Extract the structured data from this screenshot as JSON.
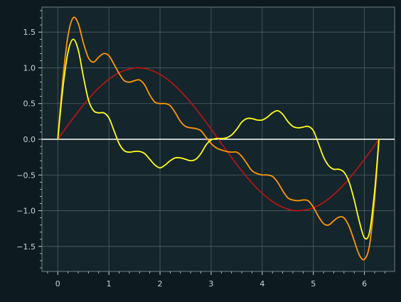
{
  "chart_data": {
    "type": "line",
    "title": "",
    "xlabel": "",
    "ylabel": "",
    "xlim": [
      -0.31,
      6.59
    ],
    "ylim": [
      -1.85,
      1.85
    ],
    "grid": true,
    "legend": "none",
    "x_ticks": [
      0,
      1,
      2,
      3,
      4,
      5,
      6
    ],
    "x_tick_labels": [
      "0",
      "1",
      "2",
      "3",
      "4",
      "5",
      "6"
    ],
    "y_ticks": [
      -1.5,
      -1.0,
      -0.5,
      0.0,
      0.5,
      1.0,
      1.5
    ],
    "y_tick_labels": [
      "−1.5",
      "−1.0",
      "−0.5",
      "0.0",
      "0.5",
      "1.0",
      "1.5"
    ],
    "series": [
      {
        "color": "#b01616",
        "x": [
          0,
          0.25,
          0.5,
          0.75,
          1.0,
          1.25,
          1.5,
          1.571,
          1.75,
          2.0,
          2.25,
          2.5,
          2.75,
          3.0,
          3.142,
          3.25,
          3.5,
          3.75,
          4.0,
          4.25,
          4.5,
          4.712,
          5.0,
          5.25,
          5.5,
          5.75,
          6.0,
          6.283
        ],
        "y": [
          0,
          0.247,
          0.479,
          0.682,
          0.841,
          0.949,
          0.997,
          1.0,
          0.984,
          0.909,
          0.778,
          0.598,
          0.382,
          0.141,
          0,
          -0.108,
          -0.351,
          -0.572,
          -0.757,
          -0.895,
          -0.977,
          -1.0,
          -0.959,
          -0.859,
          -0.706,
          -0.508,
          -0.279,
          0
        ]
      },
      {
        "color": "#ff9800",
        "x": [
          0,
          0.1,
          0.2,
          0.3,
          0.4,
          0.5,
          0.6,
          0.7,
          0.8,
          0.9,
          1.0,
          1.1,
          1.2,
          1.3,
          1.4,
          1.5,
          1.6,
          1.7,
          1.8,
          1.9,
          2.0,
          2.1,
          2.2,
          2.3,
          2.4,
          2.5,
          2.6,
          2.7,
          2.8,
          2.9,
          3.0,
          3.1,
          3.2,
          3.3,
          3.4,
          3.5,
          3.6,
          3.7,
          3.8,
          3.9,
          4.0,
          4.1,
          4.2,
          4.3,
          4.4,
          4.5,
          4.6,
          4.7,
          4.8,
          4.9,
          5.0,
          5.1,
          5.2,
          5.3,
          5.4,
          5.5,
          5.6,
          5.7,
          5.8,
          5.9,
          6.0,
          6.1,
          6.2,
          6.283
        ],
        "y": [
          0,
          0.85,
          1.45,
          1.7,
          1.62,
          1.35,
          1.14,
          1.08,
          1.15,
          1.2,
          1.17,
          1.05,
          0.92,
          0.82,
          0.8,
          0.82,
          0.83,
          0.76,
          0.62,
          0.52,
          0.5,
          0.5,
          0.47,
          0.37,
          0.25,
          0.18,
          0.16,
          0.15,
          0.12,
          0.03,
          -0.06,
          -0.12,
          -0.15,
          -0.17,
          -0.18,
          -0.18,
          -0.24,
          -0.34,
          -0.44,
          -0.48,
          -0.5,
          -0.5,
          -0.52,
          -0.6,
          -0.72,
          -0.82,
          -0.85,
          -0.86,
          -0.85,
          -0.86,
          -0.95,
          -1.08,
          -1.18,
          -1.2,
          -1.14,
          -1.09,
          -1.1,
          -1.22,
          -1.42,
          -1.62,
          -1.68,
          -1.48,
          -0.82,
          0
        ]
      },
      {
        "color": "#ffff1a",
        "x": [
          0,
          0.1,
          0.2,
          0.3,
          0.4,
          0.5,
          0.6,
          0.7,
          0.8,
          0.9,
          1.0,
          1.1,
          1.2,
          1.3,
          1.4,
          1.5,
          1.6,
          1.7,
          1.8,
          1.9,
          2.0,
          2.1,
          2.2,
          2.3,
          2.4,
          2.5,
          2.6,
          2.7,
          2.8,
          2.9,
          3.0,
          3.1,
          3.2,
          3.3,
          3.4,
          3.5,
          3.6,
          3.7,
          3.8,
          3.9,
          4.0,
          4.1,
          4.2,
          4.3,
          4.4,
          4.5,
          4.6,
          4.7,
          4.8,
          4.9,
          5.0,
          5.1,
          5.2,
          5.3,
          5.4,
          5.5,
          5.6,
          5.7,
          5.8,
          5.9,
          6.0,
          6.1,
          6.2,
          6.283
        ],
        "y": [
          0,
          0.72,
          1.22,
          1.4,
          1.25,
          0.88,
          0.55,
          0.4,
          0.37,
          0.37,
          0.3,
          0.12,
          -0.06,
          -0.16,
          -0.18,
          -0.17,
          -0.17,
          -0.2,
          -0.28,
          -0.36,
          -0.4,
          -0.36,
          -0.3,
          -0.26,
          -0.26,
          -0.28,
          -0.3,
          -0.28,
          -0.2,
          -0.08,
          -0.01,
          0.01,
          0.01,
          0.02,
          0.06,
          0.14,
          0.24,
          0.29,
          0.29,
          0.27,
          0.27,
          0.31,
          0.37,
          0.4,
          0.35,
          0.25,
          0.18,
          0.16,
          0.17,
          0.18,
          0.12,
          -0.06,
          -0.25,
          -0.37,
          -0.42,
          -0.42,
          -0.46,
          -0.6,
          -0.85,
          -1.15,
          -1.38,
          -1.3,
          -0.72,
          0
        ]
      }
    ]
  }
}
